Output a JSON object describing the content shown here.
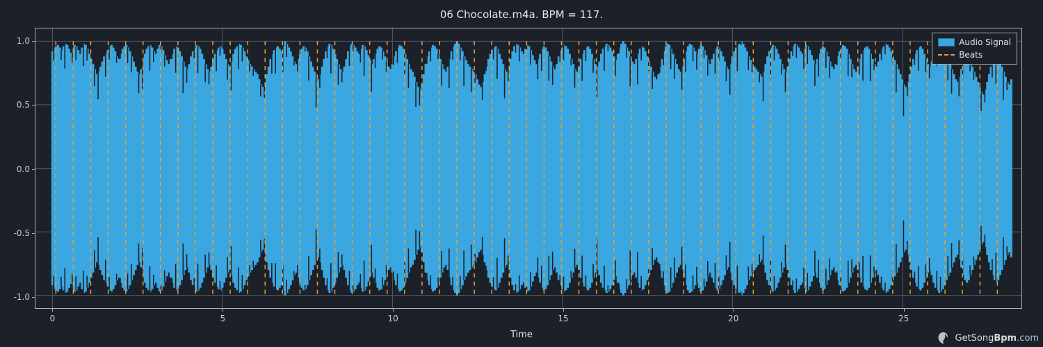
{
  "title": "06 Chocolate.m4a. BPM = 117.",
  "xlabel": "Time",
  "figure_bg": "#1b2029",
  "plot_bg": "#1b2029",
  "grid_color": "#555a60",
  "spine_color": "#b0b0b0",
  "tick_color": "#cccccc",
  "label_color": "#e6e6e6",
  "title_fontsize": 15,
  "tick_fontsize": 12,
  "label_fontsize": 13,
  "ylim": [
    -1.1,
    1.1
  ],
  "yticks": [
    -1.0,
    -0.5,
    0.0,
    0.5,
    1.0
  ],
  "xlim": [
    -0.5,
    28.5
  ],
  "xticks": [
    0,
    5,
    10,
    15,
    20,
    25
  ],
  "waveform": {
    "series_color": "#3aa7e0",
    "edge_color": "#1f77b4",
    "fill_opacity": 1.0,
    "x_start": 0.0,
    "x_end": 28.2,
    "n_segments": 520,
    "envelope_upper": [
      0.92,
      0.95,
      0.96,
      0.97,
      0.95,
      0.93,
      0.96,
      0.98,
      0.97,
      0.94,
      0.91,
      0.95,
      0.97,
      0.96,
      0.93,
      0.9,
      0.95,
      0.98,
      0.97,
      0.94,
      0.9,
      0.86,
      0.82,
      0.78,
      0.74,
      0.76,
      0.8,
      0.84,
      0.88,
      0.9,
      0.93,
      0.96,
      0.97,
      0.95,
      0.92,
      0.88,
      0.86,
      0.9,
      0.94,
      0.96,
      0.97,
      0.95,
      0.92,
      0.88,
      0.84,
      0.8,
      0.76,
      0.74,
      0.78,
      0.84,
      0.9,
      0.94,
      0.96,
      0.97,
      0.95,
      0.92,
      0.9,
      0.94,
      0.97,
      0.96,
      0.93,
      0.89,
      0.85,
      0.82,
      0.86,
      0.9,
      0.94,
      0.96,
      0.95,
      0.92,
      0.88,
      0.84,
      0.8,
      0.78,
      0.82,
      0.88,
      0.92,
      0.95,
      0.97,
      0.96,
      0.94,
      0.9,
      0.86,
      0.82,
      0.78,
      0.76,
      0.8,
      0.86,
      0.9,
      0.93,
      0.95,
      0.96,
      0.94,
      0.9,
      0.86,
      0.82,
      0.8,
      0.84,
      0.9,
      0.94,
      0.96,
      0.98,
      0.97,
      0.95,
      0.92,
      0.88,
      0.85,
      0.82,
      0.8,
      0.78,
      0.76,
      0.74,
      0.7,
      0.66,
      0.64,
      0.68,
      0.74,
      0.8,
      0.86,
      0.9,
      0.93,
      0.95,
      0.96,
      0.94,
      0.92,
      0.96,
      1.0,
      0.98,
      0.95,
      0.92,
      0.88,
      0.84,
      0.82,
      0.86,
      0.9,
      0.94,
      0.96,
      0.95,
      0.92,
      0.88,
      0.84,
      0.8,
      0.76,
      0.72,
      0.7,
      0.74,
      0.8,
      0.86,
      0.92,
      0.96,
      0.98,
      0.97,
      0.94,
      0.9,
      0.86,
      0.82,
      0.78,
      0.76,
      0.8,
      0.86,
      0.92,
      0.96,
      0.98,
      0.97,
      0.95,
      0.92,
      0.9,
      0.94,
      0.97,
      0.96,
      0.93,
      0.89,
      0.85,
      0.82,
      0.86,
      0.9,
      0.94,
      0.96,
      0.95,
      0.92,
      0.88,
      0.84,
      0.8,
      0.78,
      0.82,
      0.88,
      0.92,
      0.95,
      0.97,
      0.96,
      0.94,
      0.9,
      0.86,
      0.82,
      0.78,
      0.76,
      0.72,
      0.68,
      0.64,
      0.62,
      0.66,
      0.74,
      0.82,
      0.88,
      0.92,
      0.95,
      0.97,
      0.96,
      0.94,
      0.9,
      0.86,
      0.82,
      0.78,
      0.76,
      0.8,
      0.86,
      0.92,
      0.96,
      0.98,
      1.0,
      0.98,
      0.95,
      0.92,
      0.88,
      0.85,
      0.82,
      0.8,
      0.78,
      0.76,
      0.74,
      0.7,
      0.66,
      0.64,
      0.68,
      0.74,
      0.8,
      0.86,
      0.9,
      0.93,
      0.95,
      0.96,
      0.94,
      0.9,
      0.86,
      0.82,
      0.78,
      0.76,
      0.8,
      0.86,
      0.92,
      0.96,
      0.98,
      0.97,
      0.95,
      0.92,
      0.9,
      0.94,
      0.97,
      0.96,
      0.93,
      0.89,
      0.85,
      0.82,
      0.86,
      0.9,
      0.94,
      0.96,
      0.95,
      0.92,
      0.88,
      0.84,
      0.8,
      0.78,
      0.82,
      0.88,
      0.92,
      0.95,
      0.97,
      0.96,
      0.94,
      0.9,
      0.86,
      0.82,
      0.78,
      0.76,
      0.8,
      0.86,
      0.9,
      0.93,
      0.95,
      0.96,
      0.94,
      0.9,
      0.86,
      0.82,
      0.8,
      0.84,
      0.9,
      0.94,
      0.96,
      0.98,
      0.97,
      0.95,
      0.92,
      0.88,
      0.85,
      0.9,
      0.95,
      0.98,
      1.0,
      0.98,
      0.95,
      0.92,
      0.88,
      0.84,
      0.82,
      0.86,
      0.9,
      0.94,
      0.96,
      0.95,
      0.92,
      0.88,
      0.84,
      0.8,
      0.76,
      0.72,
      0.7,
      0.74,
      0.8,
      0.86,
      0.92,
      0.96,
      0.98,
      0.97,
      0.94,
      0.9,
      0.86,
      0.82,
      0.78,
      0.76,
      0.8,
      0.86,
      0.92,
      0.96,
      0.98,
      0.97,
      0.95,
      0.92,
      0.9,
      0.94,
      0.97,
      0.96,
      0.93,
      0.89,
      0.85,
      0.82,
      0.86,
      0.9,
      0.94,
      0.96,
      0.95,
      0.92,
      0.88,
      0.84,
      0.8,
      0.78,
      0.82,
      0.88,
      0.92,
      0.95,
      0.97,
      0.98,
      1.0,
      0.98,
      0.95,
      0.92,
      0.88,
      0.85,
      0.82,
      0.8,
      0.78,
      0.76,
      0.74,
      0.72,
      0.76,
      0.82,
      0.88,
      0.92,
      0.95,
      0.97,
      0.96,
      0.94,
      0.9,
      0.86,
      0.82,
      0.78,
      0.76,
      0.8,
      0.86,
      0.92,
      0.96,
      0.98,
      0.97,
      0.95,
      0.92,
      0.9,
      0.94,
      0.97,
      0.96,
      0.93,
      0.89,
      0.85,
      0.82,
      0.86,
      0.9,
      0.94,
      0.96,
      0.95,
      0.92,
      0.88,
      0.84,
      0.8,
      0.78,
      0.82,
      0.88,
      0.92,
      0.95,
      0.97,
      0.96,
      0.94,
      0.9,
      0.86,
      0.82,
      0.78,
      0.76,
      0.8,
      0.86,
      0.9,
      0.93,
      0.95,
      0.96,
      0.94,
      0.9,
      0.86,
      0.82,
      0.8,
      0.84,
      0.9,
      0.94,
      0.96,
      0.98,
      0.97,
      0.95,
      0.92,
      0.88,
      0.85,
      0.82,
      0.78,
      0.74,
      0.7,
      0.66,
      0.64,
      0.68,
      0.74,
      0.8,
      0.86,
      0.9,
      0.93,
      0.95,
      0.96,
      0.94,
      0.9,
      0.86,
      0.82,
      0.8,
      0.84,
      0.9,
      0.94,
      0.96,
      0.98,
      0.97,
      0.95,
      0.92,
      0.88,
      0.85,
      0.82,
      0.78,
      0.74,
      0.7,
      0.68,
      0.72,
      0.78,
      0.84,
      0.88,
      0.9,
      0.88,
      0.84,
      0.8,
      0.76,
      0.72,
      0.68,
      0.64,
      0.6,
      0.58,
      0.62,
      0.68,
      0.74,
      0.8,
      0.84,
      0.88,
      0.9,
      0.88,
      0.84,
      0.8,
      0.76,
      0.72,
      0.68,
      0.66,
      0.7
    ],
    "envelope_lower_scale": -1.0
  },
  "beats": {
    "color": "#f0a030",
    "dash": "6,6",
    "linewidth": 1.5,
    "interval_sec": 0.5128,
    "first_beat": 0.1,
    "count": 55
  },
  "legend": {
    "bg": "#1b2029",
    "border": "#b0b0b0",
    "items": [
      {
        "label": "Audio Signal",
        "type": "fill",
        "color": "#3aa7e0",
        "edge": "#1f77b4"
      },
      {
        "label": "Beats",
        "type": "dash",
        "color": "#f0a030"
      }
    ]
  },
  "watermark": {
    "text_prefix": "GetSong",
    "text_bold": "Bpm",
    "text_suffix": ".com",
    "icon_color": "#e8f4f8"
  }
}
